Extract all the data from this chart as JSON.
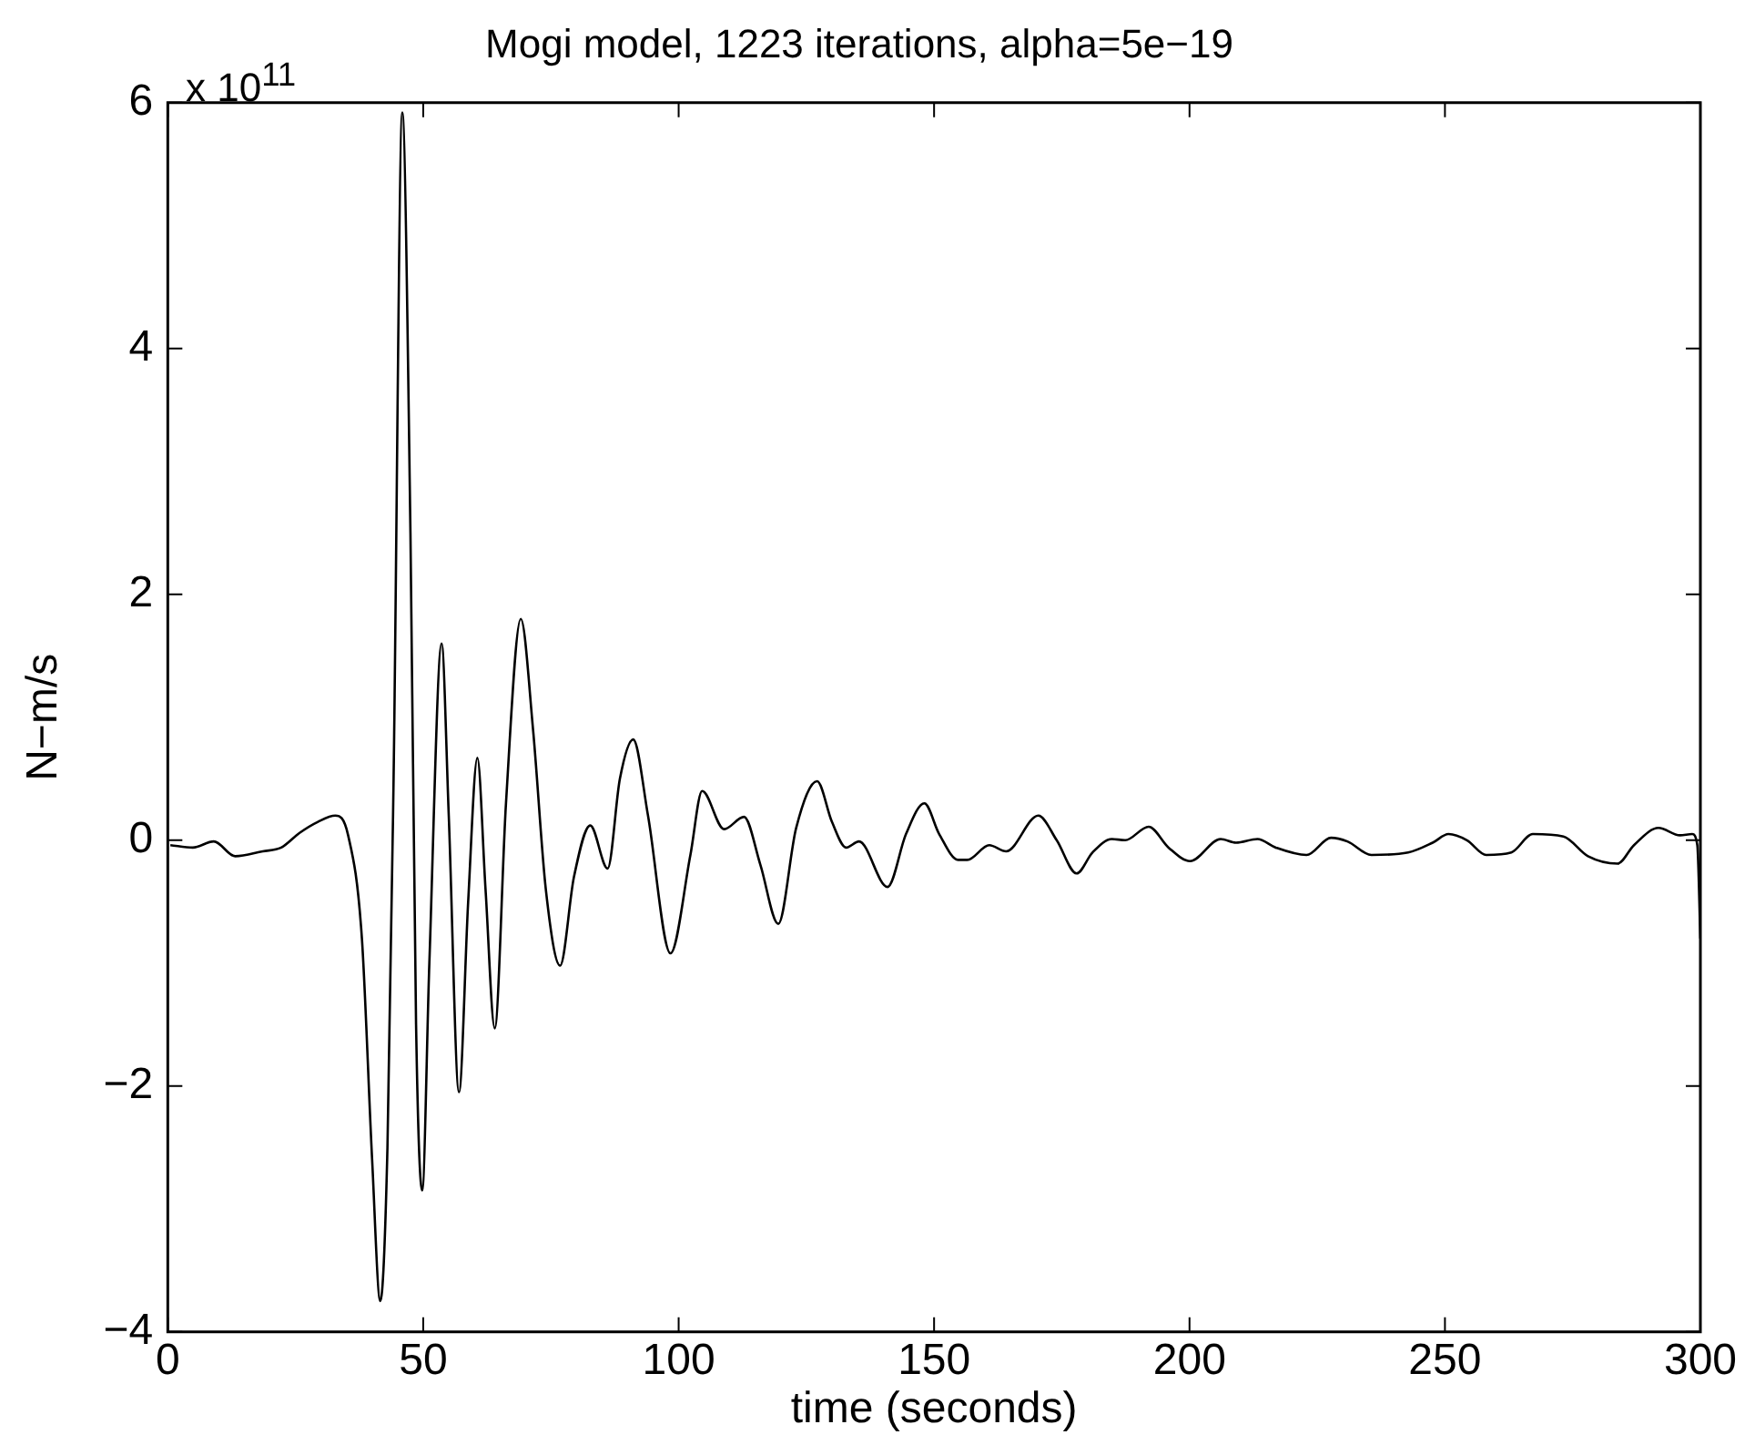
{
  "chart_data": {
    "type": "line",
    "title": "Mogi model, 1223 iterations, alpha=5e−19",
    "xlabel": "time (seconds)",
    "ylabel": "N−m/s",
    "annotations": [
      "x 10$^{11}$"
    ],
    "x": [
      0.5,
      4.9,
      9,
      13.2,
      18.6,
      22.2,
      25.8,
      29.4,
      32.8,
      35.3,
      38,
      40,
      41.6,
      43,
      44.2,
      45.9,
      47.5,
      48.6,
      49.8,
      51.2,
      53.6,
      55,
      57,
      58.8,
      60.6,
      62.2,
      64,
      66.2,
      69.1,
      71.5,
      74,
      76.8,
      79.5,
      82.7,
      86.1,
      88.5,
      91.1,
      94,
      98.4,
      102.3,
      104.6,
      108.9,
      112.8,
      116,
      119.5,
      123,
      127.1,
      130,
      132.8,
      135.3,
      140.9,
      144.5,
      148.1,
      151,
      154.7,
      156.5,
      160.8,
      164.1,
      170.4,
      174,
      177.9,
      181,
      184.8,
      187.4,
      192,
      195.9,
      200.1,
      206.1,
      209.1,
      213.3,
      216.9,
      222.9,
      227.7,
      230.9,
      235.6,
      242.8,
      247.6,
      250.7,
      254.3,
      258.1,
      263,
      267.2,
      273.2,
      278,
      283.8,
      287,
      291.8,
      296,
      298.4,
      299.4,
      300
    ],
    "series": [
      {
        "color": "#000000",
        "values": [
          -0.04,
          -0.06,
          -0.01,
          -0.13,
          -0.09,
          -0.06,
          0.06,
          0.15,
          0.2,
          0.04,
          -0.8,
          -2.6,
          -3.75,
          -2.5,
          0.5,
          5.92,
          2.5,
          -1.5,
          -2.85,
          -1,
          1.6,
          0.2,
          -2.05,
          -0.5,
          0.67,
          -0.4,
          -1.53,
          0.3,
          1.8,
          0.9,
          -0.4,
          -1.02,
          -0.3,
          0.12,
          -0.23,
          0.5,
          0.82,
          0.2,
          -0.92,
          -0.12,
          0.4,
          0.09,
          0.19,
          -0.2,
          -0.68,
          0.1,
          0.48,
          0.15,
          -0.06,
          -0.01,
          -0.38,
          0.05,
          0.3,
          0.05,
          -0.16,
          -0.16,
          -0.04,
          -0.09,
          0.2,
          0,
          -0.27,
          -0.1,
          0.01,
          0,
          0.11,
          -0.06,
          -0.17,
          0.01,
          -0.02,
          0.01,
          -0.06,
          -0.12,
          0.02,
          -0.01,
          -0.12,
          -0.1,
          -0.02,
          0.05,
          0,
          -0.12,
          -0.1,
          0.05,
          0.03,
          -0.13,
          -0.19,
          -0.04,
          0.1,
          0.04,
          0.05,
          -0.04,
          -0.8
        ]
      }
    ],
    "xlim": [
      0,
      300
    ],
    "xticks": [
      0,
      50,
      100,
      150,
      200,
      250,
      300
    ],
    "ylim": [
      -4,
      6
    ],
    "yticks": [
      {
        "value": -4,
        "label": "−4"
      },
      {
        "value": -2,
        "label": "−2"
      },
      0,
      2,
      4,
      6
    ],
    "grid": false,
    "legend": false,
    "marker": "none",
    "line_style": "solid"
  }
}
